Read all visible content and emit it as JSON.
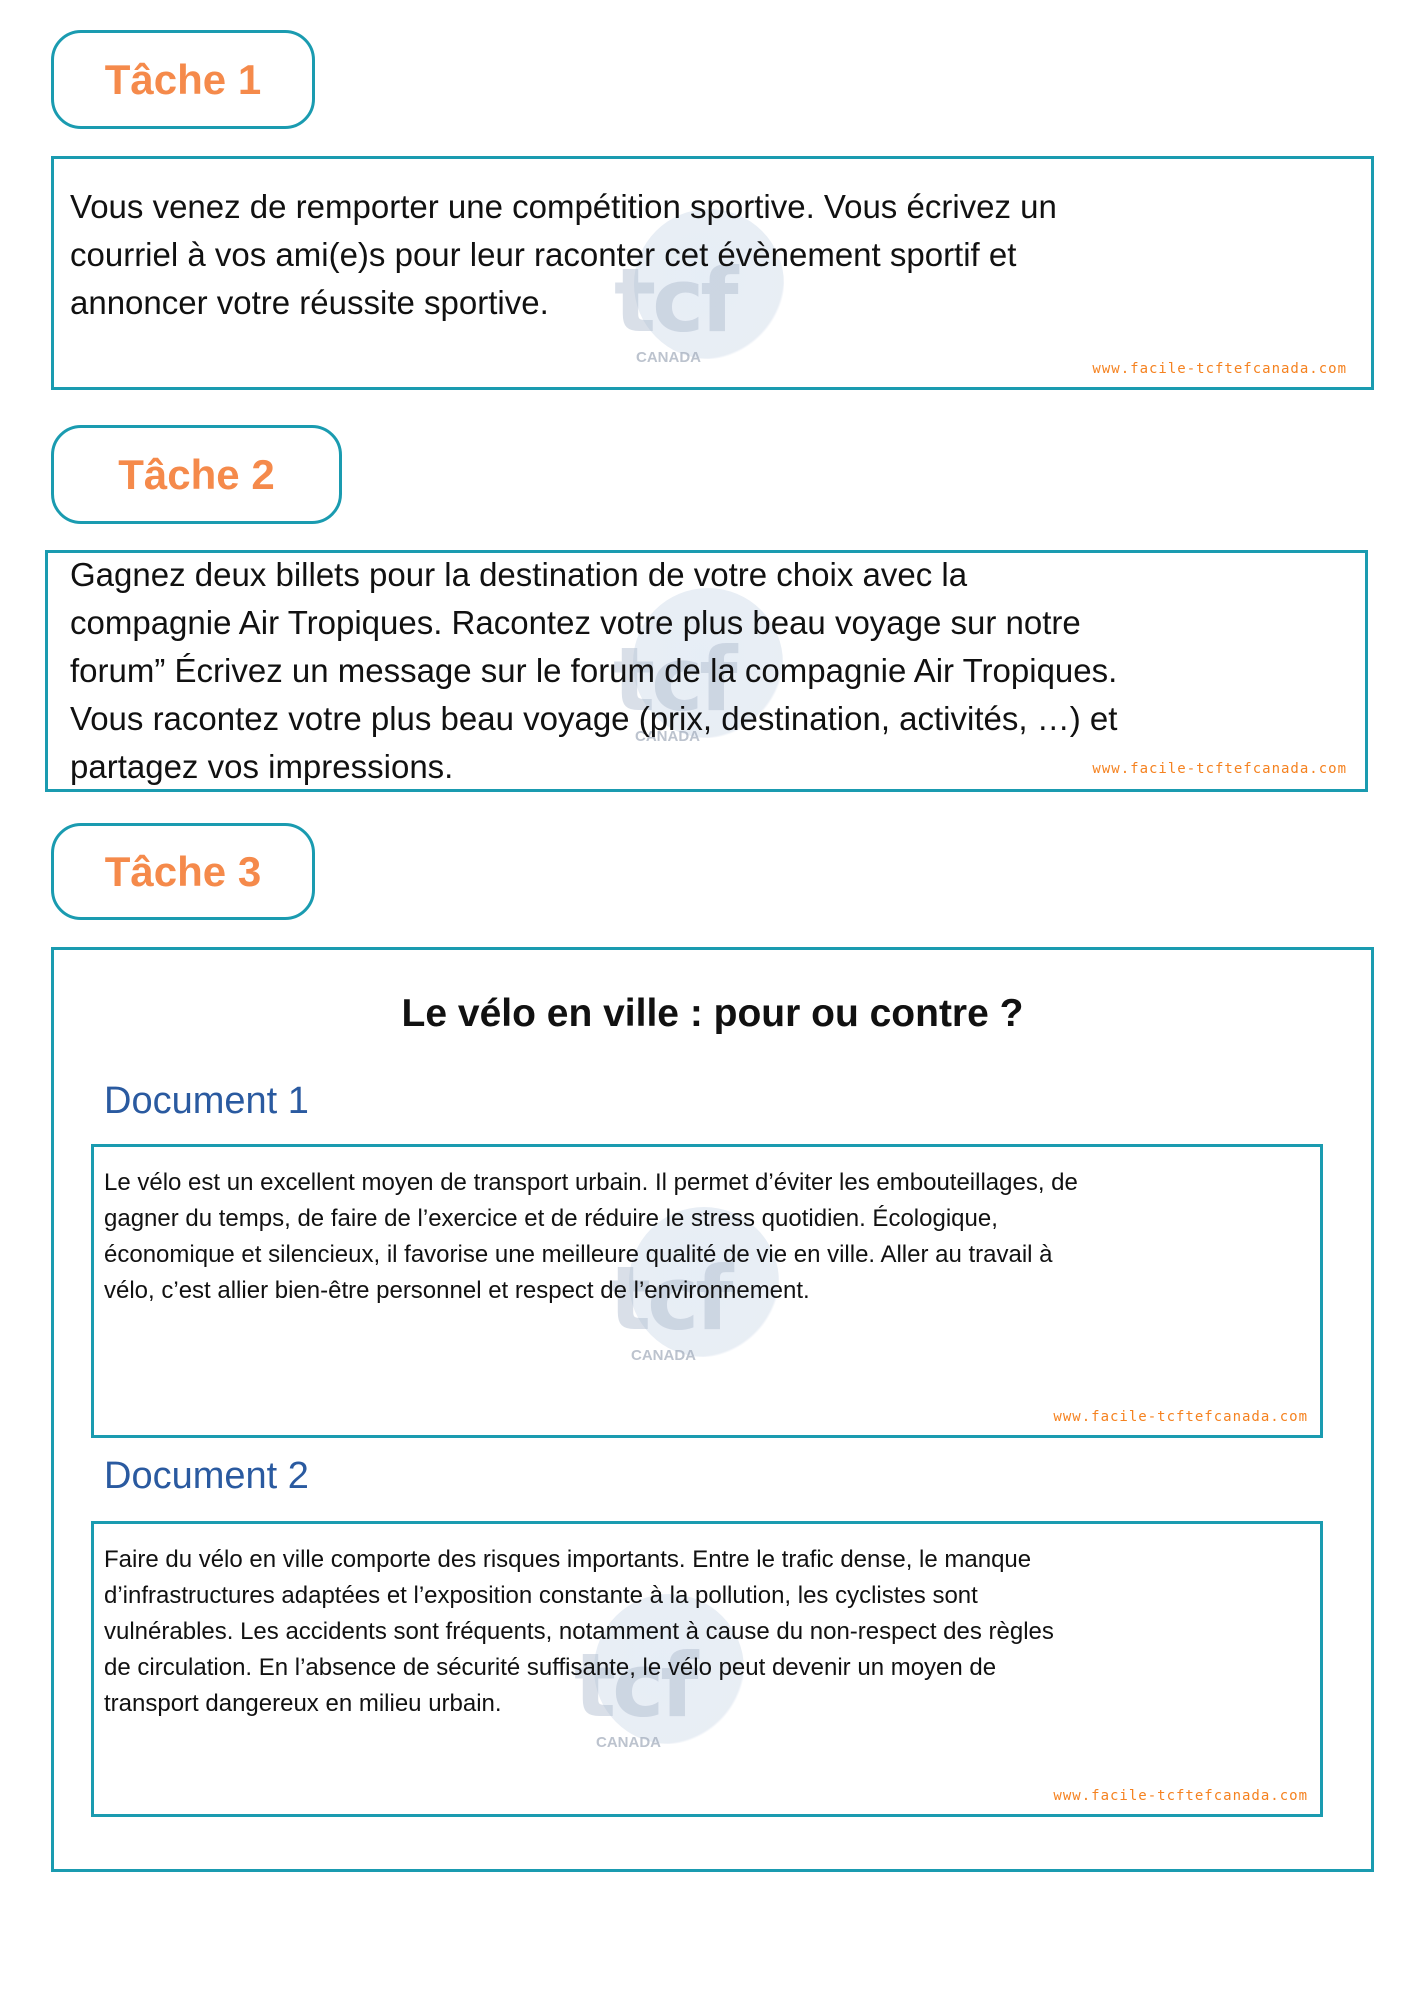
{
  "colors": {
    "accent_border": "#1a9bb0",
    "task_label": "#f58a4b",
    "document_heading": "#2a5aa0",
    "url": "#f58220"
  },
  "watermark": {
    "logo_text": "tcf",
    "logo_subtext": "CANADA",
    "arc_text": "www.facile-tcftefcanada.com"
  },
  "website_url": "www.facile-tcftefcanada.com",
  "tasks": [
    {
      "label": "Tâche 1",
      "lines": [
        "Vous venez de remporter une compétition sportive. Vous écrivez un",
        "courriel à vos ami(e)s pour leur raconter cet évènement sportif et",
        "annoncer votre réussite sportive."
      ]
    },
    {
      "label": "Tâche 2",
      "lines": [
        "Gagnez deux billets pour la destination de votre choix avec la",
        "compagnie Air Tropiques. Racontez votre plus beau voyage sur notre",
        "forum” Écrivez un message sur le forum de la compagnie Air Tropiques.",
        "Vous racontez votre plus beau voyage (prix, destination, activités, …) et",
        "partagez vos impressions."
      ]
    },
    {
      "label": "Tâche 3",
      "title": "Le vélo en ville : pour ou contre ?",
      "documents": [
        {
          "heading": "Document 1",
          "lines": [
            "Le vélo est un excellent moyen de transport urbain. Il permet d’éviter les embouteillages, de",
            "gagner du temps, de faire de l’exercice et de réduire le stress quotidien. Écologique,",
            "économique et silencieux, il favorise une meilleure qualité de vie en ville. Aller au travail à",
            "vélo, c’est allier bien-être personnel et respect de l’environnement."
          ]
        },
        {
          "heading": "Document 2",
          "lines": [
            "Faire du vélo en ville comporte des risques importants. Entre le trafic dense, le manque",
            "d’infrastructures adaptées et l’exposition constante à la pollution, les cyclistes sont",
            "vulnérables. Les accidents sont fréquents, notamment à cause du non-respect des règles",
            "de circulation. En l’absence de sécurité suffisante, le vélo peut devenir un moyen de",
            "transport dangereux en milieu urbain."
          ]
        }
      ]
    }
  ]
}
